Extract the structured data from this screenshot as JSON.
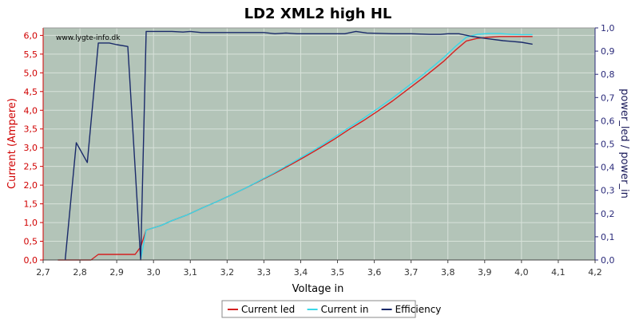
{
  "chart_data": {
    "type": "line",
    "title": "LD2 XML2 high HL",
    "watermark": "www.lygte-info.dk",
    "xlabel": "Voltage in",
    "ylabel_left": "Current (Ampere)",
    "ylabel_right": "power_led / power_in",
    "xlim": [
      2.7,
      4.2
    ],
    "ylim_left": [
      0,
      6.2
    ],
    "ylim_right": [
      0,
      1.0
    ],
    "x_ticks": [
      "2,7",
      "2,8",
      "2,9",
      "3,0",
      "3,1",
      "3,2",
      "3,3",
      "3,4",
      "3,5",
      "3,6",
      "3,7",
      "3,8",
      "3,9",
      "4,0",
      "4,1",
      "4,2"
    ],
    "y_left_ticks": [
      "0,0",
      "0,5",
      "1,0",
      "1,5",
      "2,0",
      "2,5",
      "3,0",
      "3,5",
      "4,0",
      "4,5",
      "5,0",
      "5,5",
      "6,0"
    ],
    "y_right_ticks": [
      "0,0",
      "0,1",
      "0,2",
      "0,3",
      "0,4",
      "0,5",
      "0,6",
      "0,7",
      "0,8",
      "0,9",
      "1,0"
    ],
    "grid": true,
    "legend_position": "bottom",
    "colors": {
      "plot_bg": "#b3c4b8",
      "grid": "#d8e2da",
      "left_axis": "#d00000",
      "right_axis": "#2a2a7a"
    },
    "series": [
      {
        "name": "Current led",
        "axis": "left",
        "color": "#d42020",
        "x": [
          2.74,
          2.83,
          2.85,
          2.88,
          2.93,
          2.95,
          2.965,
          2.98,
          3.02,
          3.05,
          3.09,
          3.13,
          3.17,
          3.21,
          3.25,
          3.29,
          3.33,
          3.37,
          3.41,
          3.45,
          3.49,
          3.53,
          3.57,
          3.61,
          3.65,
          3.69,
          3.73,
          3.76,
          3.79,
          3.82,
          3.85,
          3.88,
          3.91,
          3.94,
          3.97,
          4.0,
          4.03
        ],
        "values": [
          0.0,
          0.0,
          0.15,
          0.15,
          0.15,
          0.15,
          0.35,
          0.8,
          0.92,
          1.05,
          1.2,
          1.38,
          1.55,
          1.73,
          1.92,
          2.12,
          2.32,
          2.53,
          2.75,
          2.98,
          3.22,
          3.48,
          3.72,
          3.98,
          4.25,
          4.55,
          4.85,
          5.08,
          5.32,
          5.6,
          5.85,
          5.92,
          5.95,
          5.97,
          5.97,
          5.97,
          5.97
        ]
      },
      {
        "name": "Current in",
        "axis": "left",
        "color": "#3ad8e8",
        "x": [
          2.965,
          2.98,
          3.02,
          3.05,
          3.09,
          3.13,
          3.17,
          3.21,
          3.25,
          3.29,
          3.33,
          3.37,
          3.41,
          3.45,
          3.49,
          3.53,
          3.57,
          3.61,
          3.65,
          3.69,
          3.73,
          3.76,
          3.79,
          3.82,
          3.85,
          3.88,
          3.91,
          3.94,
          3.97,
          4.0,
          4.03
        ],
        "values": [
          0.0,
          0.8,
          0.92,
          1.05,
          1.2,
          1.38,
          1.55,
          1.73,
          1.92,
          2.13,
          2.34,
          2.56,
          2.79,
          3.02,
          3.27,
          3.53,
          3.78,
          4.05,
          4.33,
          4.63,
          4.93,
          5.17,
          5.42,
          5.7,
          5.95,
          6.03,
          6.05,
          6.05,
          6.03,
          6.02,
          6.02
        ]
      },
      {
        "name": "Efficiency",
        "axis": "right",
        "color": "#1a2a6a",
        "x": [
          2.76,
          2.79,
          2.82,
          2.85,
          2.88,
          2.9,
          2.93,
          2.965,
          2.98,
          3.05,
          3.08,
          3.1,
          3.13,
          3.2,
          3.3,
          3.33,
          3.36,
          3.39,
          3.45,
          3.52,
          3.55,
          3.58,
          3.65,
          3.7,
          3.75,
          3.78,
          3.8,
          3.83,
          3.86,
          3.9,
          3.95,
          4.0,
          4.03
        ],
        "values": [
          0.0,
          0.505,
          0.42,
          0.935,
          0.935,
          0.928,
          0.92,
          0.0,
          0.985,
          0.985,
          0.982,
          0.985,
          0.98,
          0.98,
          0.98,
          0.975,
          0.978,
          0.975,
          0.975,
          0.975,
          0.985,
          0.978,
          0.975,
          0.975,
          0.972,
          0.972,
          0.975,
          0.975,
          0.965,
          0.955,
          0.945,
          0.938,
          0.93
        ]
      }
    ]
  }
}
